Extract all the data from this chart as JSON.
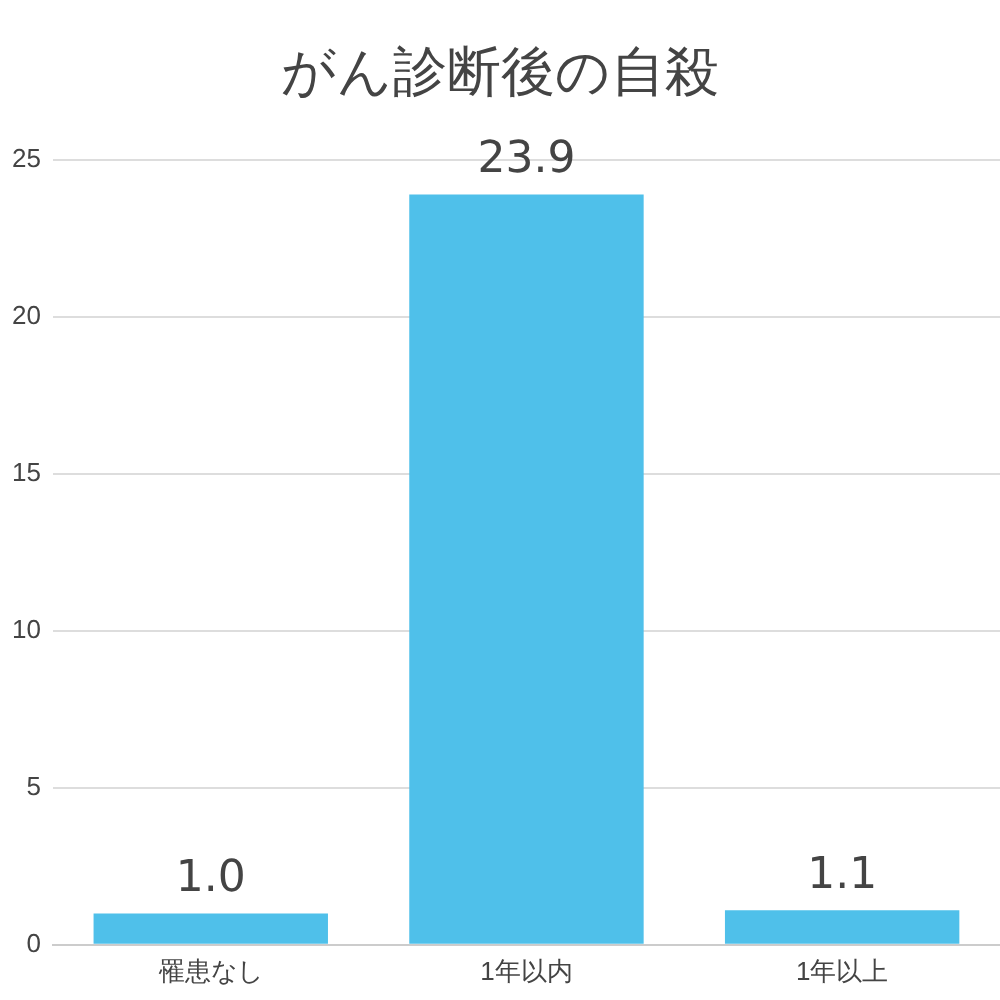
{
  "chart_data": {
    "type": "bar",
    "title": "がん診断後の自殺",
    "categories": [
      "罹患なし",
      "1年以内",
      "1年以上"
    ],
    "values": [
      1.0,
      23.9,
      1.1
    ],
    "value_labels": [
      "1.0",
      "23.9",
      "1.1"
    ],
    "color": "#4fc0ea",
    "ylim": [
      0,
      25
    ],
    "yticks": [
      0,
      5,
      10,
      15,
      20,
      25
    ],
    "grid": "y",
    "legend": false
  }
}
